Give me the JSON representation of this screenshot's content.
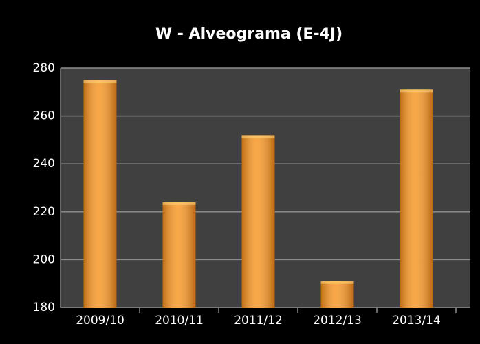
{
  "chart_data": {
    "type": "bar",
    "title": "W - Alveograma (E-4J)",
    "categories": [
      "2009/10",
      "2010/11",
      "2011/12",
      "2012/13",
      "2013/14"
    ],
    "values": [
      275,
      224,
      252,
      191,
      271
    ],
    "color": "#f7951f",
    "ylim": [
      180,
      280
    ],
    "yticks": [
      180,
      200,
      220,
      240,
      260,
      280
    ],
    "grid": true
  }
}
